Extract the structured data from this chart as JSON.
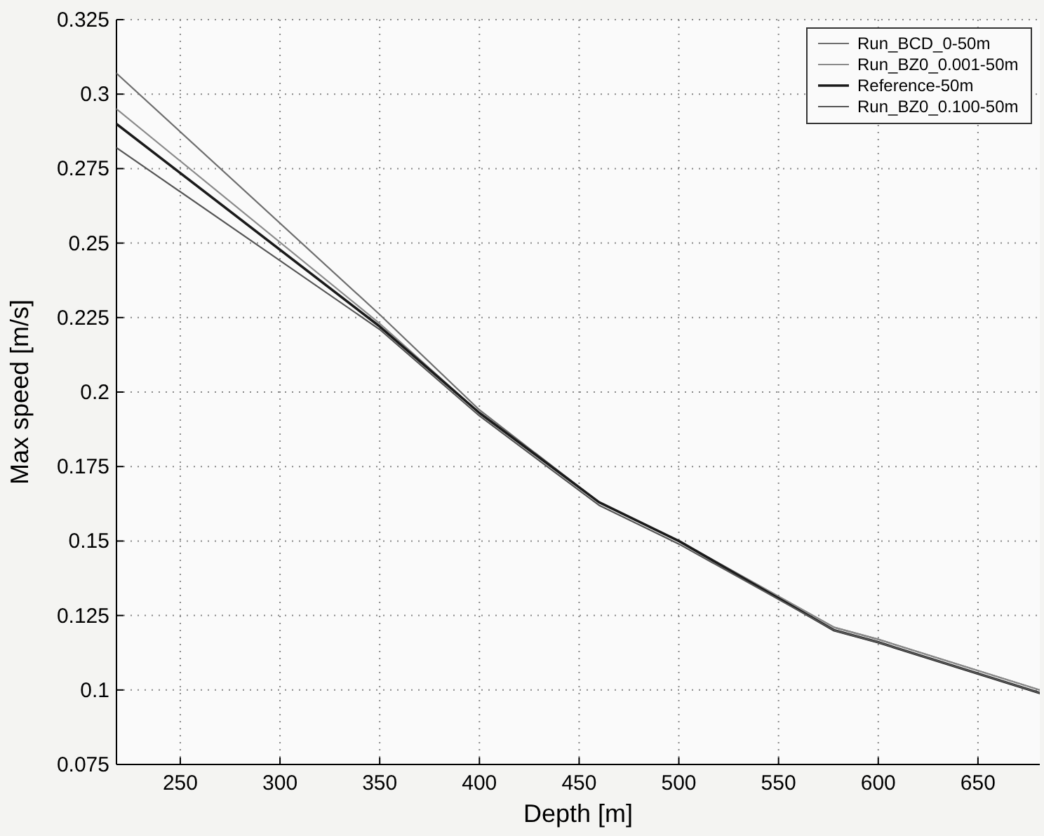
{
  "chart_data": {
    "type": "line",
    "xlabel": "Depth [m]",
    "ylabel": "Max speed [m/s]",
    "x": [
      218,
      350,
      400,
      460,
      500,
      578,
      600,
      681
    ],
    "series": [
      {
        "name": "Run_BCD_0-50m",
        "color": "#6e6e6e",
        "values": [
          0.307,
          0.226,
          0.194,
          0.163,
          0.15,
          0.121,
          0.117,
          0.1
        ]
      },
      {
        "name": "Run_BZ0_0.001-50m",
        "color": "#8a8a8a",
        "values": [
          0.295,
          0.223,
          0.193,
          0.163,
          0.15,
          0.121,
          0.117,
          0.1
        ]
      },
      {
        "name": "Reference-50m",
        "color": "#1a1a1a",
        "values": [
          0.29,
          0.222,
          0.193,
          0.163,
          0.15,
          0.12,
          0.116,
          0.099
        ]
      },
      {
        "name": "Run_BZ0_0.100-50m",
        "color": "#555555",
        "values": [
          0.282,
          0.221,
          0.192,
          0.162,
          0.149,
          0.12,
          0.116,
          0.099
        ]
      }
    ],
    "xlim": [
      218,
      681
    ],
    "ylim": [
      0.075,
      0.325
    ],
    "xticks": [
      250,
      300,
      350,
      400,
      450,
      500,
      550,
      600,
      650
    ],
    "yticks": [
      {
        "value": 0.075,
        "label": "0.075"
      },
      {
        "value": 0.1,
        "label": "0.1"
      },
      {
        "value": 0.125,
        "label": "0.125"
      },
      {
        "value": 0.15,
        "label": "0.15"
      },
      {
        "value": 0.175,
        "label": "0.175"
      },
      {
        "value": 0.2,
        "label": "0.2"
      },
      {
        "value": 0.225,
        "label": "0.225"
      },
      {
        "value": 0.25,
        "label": "0.25"
      },
      {
        "value": 0.275,
        "label": "0.275"
      },
      {
        "value": 0.3,
        "label": "0.3"
      },
      {
        "value": 0.325,
        "label": "0.325"
      }
    ],
    "grid": true,
    "legend": "top right",
    "marker": "none",
    "line_style": "solid"
  }
}
